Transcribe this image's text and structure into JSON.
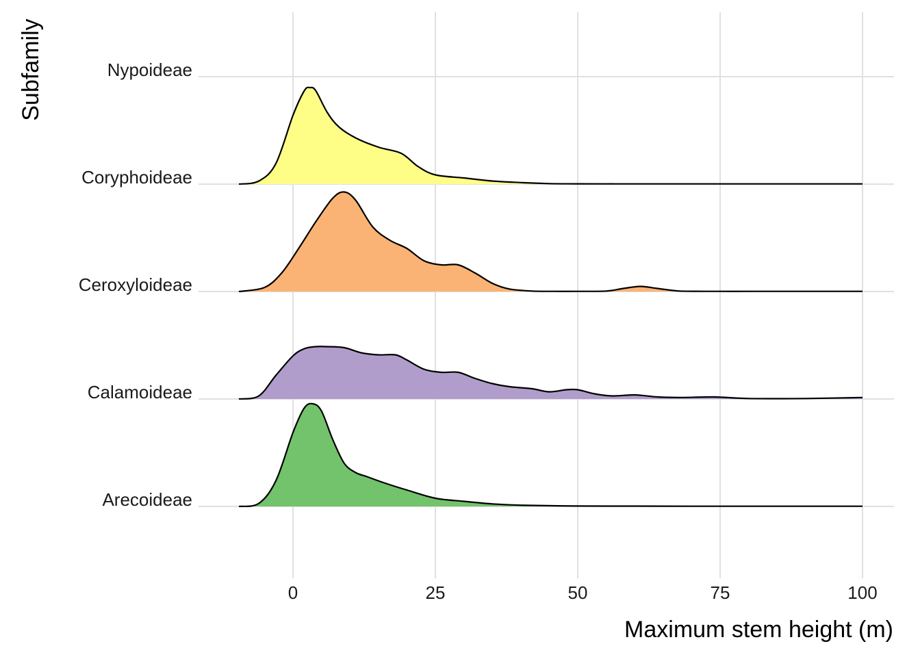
{
  "chart_data": {
    "type": "ridgeline",
    "title": "",
    "xlabel": "Maximum stem height (m)",
    "ylabel": "Subfamily",
    "xlim": [
      -19,
      105
    ],
    "xticks": [
      0,
      25,
      50,
      75,
      100
    ],
    "x_tick_labels": [
      "0",
      "25",
      "50",
      "75",
      "100"
    ],
    "categories": [
      "Arecoideae",
      "Calamoideae",
      "Ceroxyloideae",
      "Coryphoideae",
      "Nypoideae"
    ],
    "grid": true,
    "legend": "none",
    "series": [
      {
        "category": "Arecoideae",
        "color": "#72c36b",
        "x": [
          -9.5,
          -6,
          -3,
          0,
          2,
          3.5,
          5,
          7,
          9,
          11,
          13,
          16,
          20,
          25,
          30,
          35,
          40,
          50,
          60,
          70,
          80,
          90,
          100
        ],
        "density": [
          0,
          0.03,
          0.25,
          0.72,
          0.96,
          1.0,
          0.93,
          0.65,
          0.42,
          0.33,
          0.29,
          0.23,
          0.16,
          0.08,
          0.05,
          0.025,
          0.012,
          0.004,
          0.003,
          0.002,
          0.002,
          0.002,
          0.002
        ]
      },
      {
        "category": "Calamoideae",
        "color": "#b09dcb",
        "x": [
          -9.5,
          -6,
          -3,
          0,
          2,
          4,
          6,
          9,
          12,
          15,
          18,
          20,
          23,
          26,
          29,
          32,
          35,
          38,
          42,
          45,
          48,
          50,
          53,
          56,
          60,
          64,
          68,
          74,
          80,
          90,
          100
        ],
        "density": [
          0,
          0.03,
          0.23,
          0.42,
          0.49,
          0.51,
          0.51,
          0.5,
          0.45,
          0.43,
          0.43,
          0.38,
          0.29,
          0.26,
          0.26,
          0.2,
          0.15,
          0.12,
          0.1,
          0.07,
          0.09,
          0.09,
          0.05,
          0.03,
          0.04,
          0.02,
          0.015,
          0.02,
          0.005,
          0.005,
          0.015
        ]
      },
      {
        "category": "Ceroxyloideae",
        "color": "#fab374",
        "x": [
          -9.5,
          -5,
          -2,
          1,
          4,
          7,
          9,
          11,
          14,
          17,
          20,
          23,
          26,
          29,
          32,
          35,
          38,
          42,
          46,
          50,
          55,
          58,
          61,
          64,
          68,
          75,
          80,
          90,
          100
        ],
        "density": [
          0,
          0.04,
          0.18,
          0.42,
          0.68,
          0.91,
          0.97,
          0.89,
          0.63,
          0.5,
          0.42,
          0.3,
          0.26,
          0.26,
          0.18,
          0.08,
          0.025,
          0.005,
          0.002,
          0.002,
          0.005,
          0.03,
          0.05,
          0.03,
          0.005,
          0.002,
          0.002,
          0.002,
          0.002
        ]
      },
      {
        "category": "Coryphoideae",
        "color": "#fefe87",
        "x": [
          -9.5,
          -6,
          -3,
          0,
          2,
          3,
          4,
          6,
          8,
          11,
          15,
          19,
          22,
          25,
          30,
          35,
          40,
          45,
          50,
          60,
          70,
          80,
          90,
          100
        ],
        "density": [
          0,
          0.03,
          0.2,
          0.67,
          0.91,
          0.94,
          0.91,
          0.7,
          0.56,
          0.45,
          0.36,
          0.3,
          0.17,
          0.09,
          0.06,
          0.03,
          0.015,
          0.005,
          0.003,
          0.002,
          0.002,
          0.002,
          0.002,
          0.002
        ]
      },
      {
        "category": "Nypoideae",
        "color": "#f0f0f0",
        "x": [],
        "density": []
      }
    ]
  }
}
